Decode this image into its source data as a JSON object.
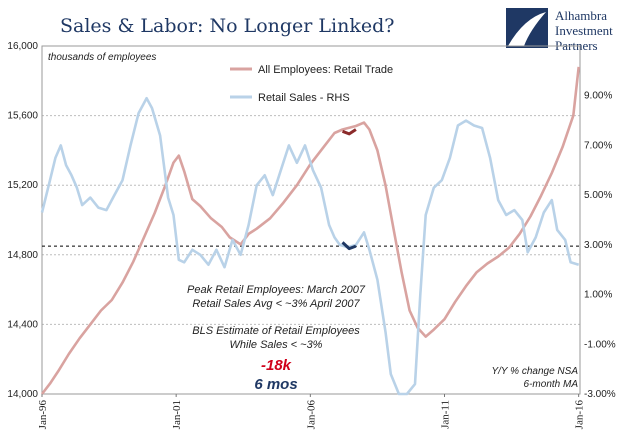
{
  "title": "Sales & Labor: No Longer Linked?",
  "logo": {
    "line1": "Alhambra",
    "line2": "Investment",
    "line3": "Partners"
  },
  "unit_note": "thousands of employees",
  "source_note": {
    "line1": "Y/Y % change NSA",
    "line2": "6-month MA"
  },
  "annotations": {
    "peak1": "Peak Retail Employees: March 2007",
    "peak2": "Retail Sales Avg < ~3% April 2007",
    "bls1": "BLS Estimate of Retail Employees",
    "bls2": "While Sales < ~3%",
    "change": "-18k",
    "duration": "6 mos"
  },
  "colors": {
    "employees": "#d9a3a0",
    "sales": "#b9d2e8",
    "highlight_emp": "#8b2a2a",
    "highlight_sales": "#1f3864",
    "title": "#1f3864",
    "red": "#d0021b"
  },
  "chart_data": {
    "type": "line",
    "x_range": [
      1996.0,
      2016.05
    ],
    "x_ticks": [
      {
        "label": "Jan-96",
        "x": 1996.0
      },
      {
        "label": "Jan-01",
        "x": 2001.0
      },
      {
        "label": "Jan-06",
        "x": 2006.0
      },
      {
        "label": "Jan-11",
        "x": 2011.0
      },
      {
        "label": "Jan-16",
        "x": 2016.0
      }
    ],
    "y_left": {
      "range": [
        14000,
        16000
      ],
      "ticks": [
        "14,000",
        "14,400",
        "14,800",
        "15,200",
        "15,600",
        "16,000"
      ],
      "tick_values": [
        14000,
        14400,
        14800,
        15200,
        15600,
        16000
      ]
    },
    "y_right": {
      "range": [
        -3.0,
        11.0
      ],
      "ticks": [
        "-3.00%",
        "-1.00%",
        "1.00%",
        "3.00%",
        "5.00%",
        "7.00%",
        "9.00%"
      ],
      "tick_values": [
        -3,
        -1,
        1,
        3,
        5,
        7,
        9
      ]
    },
    "grid": true,
    "reference_line": {
      "axis": "right",
      "value": 2.95,
      "style": "dashed"
    },
    "series": [
      {
        "name": "All Employees: Retail Trade",
        "axis": "left",
        "points": [
          [
            1996.0,
            14000
          ],
          [
            1996.3,
            14060
          ],
          [
            1996.6,
            14130
          ],
          [
            1997.0,
            14230
          ],
          [
            1997.4,
            14320
          ],
          [
            1997.8,
            14400
          ],
          [
            1998.2,
            14480
          ],
          [
            1998.6,
            14540
          ],
          [
            1999.0,
            14640
          ],
          [
            1999.4,
            14760
          ],
          [
            1999.8,
            14900
          ],
          [
            2000.2,
            15040
          ],
          [
            2000.6,
            15200
          ],
          [
            2000.9,
            15330
          ],
          [
            2001.1,
            15370
          ],
          [
            2001.3,
            15280
          ],
          [
            2001.6,
            15120
          ],
          [
            2001.9,
            15080
          ],
          [
            2002.3,
            15010
          ],
          [
            2002.7,
            14960
          ],
          [
            2003.0,
            14900
          ],
          [
            2003.4,
            14860
          ],
          [
            2003.7,
            14920
          ],
          [
            2004.0,
            14950
          ],
          [
            2004.5,
            15010
          ],
          [
            2005.0,
            15100
          ],
          [
            2005.5,
            15200
          ],
          [
            2006.0,
            15320
          ],
          [
            2006.5,
            15420
          ],
          [
            2006.9,
            15500
          ],
          [
            2007.2,
            15520
          ],
          [
            2007.7,
            15540
          ],
          [
            2008.0,
            15560
          ],
          [
            2008.2,
            15520
          ],
          [
            2008.5,
            15400
          ],
          [
            2008.8,
            15200
          ],
          [
            2009.1,
            14950
          ],
          [
            2009.4,
            14700
          ],
          [
            2009.7,
            14480
          ],
          [
            2010.0,
            14380
          ],
          [
            2010.3,
            14330
          ],
          [
            2010.6,
            14370
          ],
          [
            2011.0,
            14430
          ],
          [
            2011.4,
            14530
          ],
          [
            2011.8,
            14620
          ],
          [
            2012.2,
            14700
          ],
          [
            2012.6,
            14750
          ],
          [
            2013.0,
            14790
          ],
          [
            2013.4,
            14840
          ],
          [
            2013.8,
            14920
          ],
          [
            2014.2,
            15020
          ],
          [
            2014.6,
            15140
          ],
          [
            2015.0,
            15270
          ],
          [
            2015.4,
            15420
          ],
          [
            2015.8,
            15600
          ],
          [
            2016.0,
            15880
          ]
        ]
      },
      {
        "name": "Retail Sales - RHS",
        "axis": "right",
        "points": [
          [
            1996.0,
            4.3
          ],
          [
            1996.3,
            5.6
          ],
          [
            1996.5,
            6.5
          ],
          [
            1996.7,
            7.0
          ],
          [
            1996.9,
            6.2
          ],
          [
            1997.1,
            5.8
          ],
          [
            1997.3,
            5.3
          ],
          [
            1997.5,
            4.6
          ],
          [
            1997.8,
            4.9
          ],
          [
            1998.1,
            4.5
          ],
          [
            1998.4,
            4.4
          ],
          [
            1998.7,
            5.0
          ],
          [
            1999.0,
            5.6
          ],
          [
            1999.3,
            7.0
          ],
          [
            1999.6,
            8.3
          ],
          [
            1999.9,
            8.9
          ],
          [
            2000.1,
            8.5
          ],
          [
            2000.4,
            7.4
          ],
          [
            2000.7,
            4.9
          ],
          [
            2000.9,
            4.2
          ],
          [
            2001.1,
            2.4
          ],
          [
            2001.3,
            2.3
          ],
          [
            2001.6,
            2.8
          ],
          [
            2001.9,
            2.6
          ],
          [
            2002.2,
            2.2
          ],
          [
            2002.5,
            2.8
          ],
          [
            2002.8,
            2.1
          ],
          [
            2003.1,
            3.2
          ],
          [
            2003.4,
            2.6
          ],
          [
            2003.7,
            3.8
          ],
          [
            2004.0,
            5.4
          ],
          [
            2004.3,
            5.8
          ],
          [
            2004.6,
            5.0
          ],
          [
            2004.9,
            6.0
          ],
          [
            2005.2,
            7.0
          ],
          [
            2005.5,
            6.3
          ],
          [
            2005.8,
            7.0
          ],
          [
            2006.1,
            6.0
          ],
          [
            2006.4,
            5.3
          ],
          [
            2006.7,
            3.8
          ],
          [
            2006.9,
            3.3
          ],
          [
            2007.1,
            3.0
          ],
          [
            2007.4,
            2.9
          ],
          [
            2007.7,
            3.0
          ],
          [
            2008.0,
            3.5
          ],
          [
            2008.2,
            2.8
          ],
          [
            2008.5,
            1.6
          ],
          [
            2008.8,
            -0.5
          ],
          [
            2009.0,
            -2.2
          ],
          [
            2009.3,
            -3.0
          ],
          [
            2009.6,
            -3.0
          ],
          [
            2009.9,
            -2.6
          ],
          [
            2010.1,
            1.0
          ],
          [
            2010.3,
            4.2
          ],
          [
            2010.6,
            5.3
          ],
          [
            2010.9,
            5.6
          ],
          [
            2011.2,
            6.5
          ],
          [
            2011.5,
            7.8
          ],
          [
            2011.8,
            8.0
          ],
          [
            2012.1,
            7.8
          ],
          [
            2012.4,
            7.7
          ],
          [
            2012.7,
            6.5
          ],
          [
            2013.0,
            4.8
          ],
          [
            2013.3,
            4.2
          ],
          [
            2013.6,
            4.4
          ],
          [
            2013.9,
            4.0
          ],
          [
            2014.1,
            2.7
          ],
          [
            2014.4,
            3.3
          ],
          [
            2014.7,
            4.3
          ],
          [
            2015.0,
            4.8
          ],
          [
            2015.2,
            3.6
          ],
          [
            2015.5,
            3.2
          ],
          [
            2015.7,
            2.3
          ],
          [
            2016.0,
            2.2
          ]
        ]
      }
    ],
    "highlight_segments": [
      {
        "series": "All Employees: Retail Trade",
        "axis": "left",
        "points": [
          [
            2007.2,
            15510
          ],
          [
            2007.45,
            15495
          ],
          [
            2007.7,
            15520
          ]
        ]
      },
      {
        "series": "Retail Sales - RHS",
        "axis": "right",
        "points": [
          [
            2007.2,
            3.1
          ],
          [
            2007.45,
            2.85
          ],
          [
            2007.7,
            2.95
          ]
        ]
      }
    ]
  }
}
